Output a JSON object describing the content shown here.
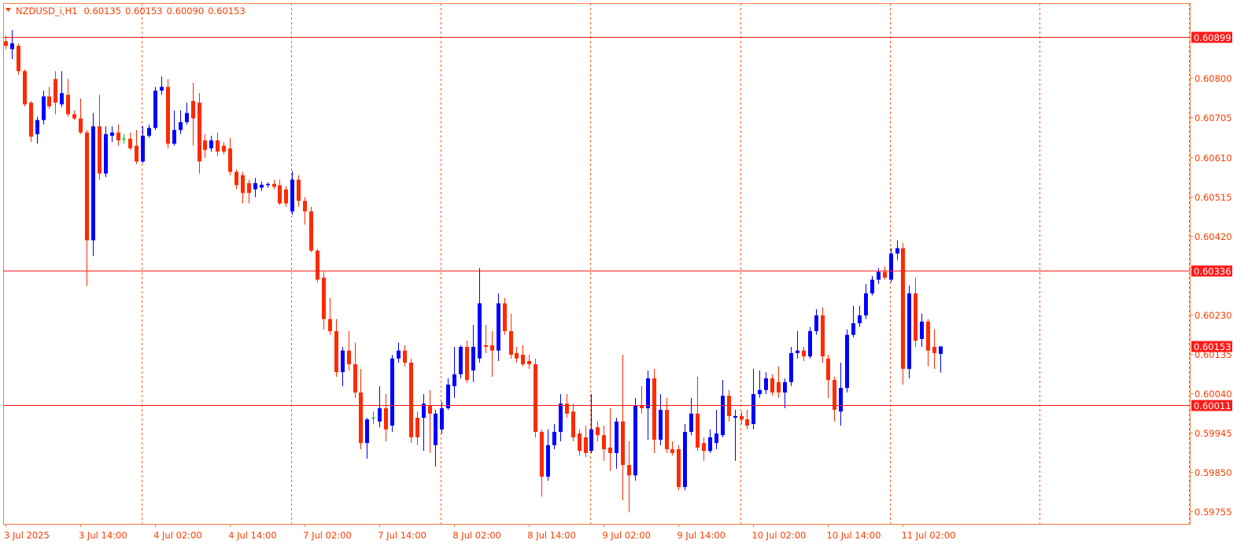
{
  "chart_data": {
    "type": "candlestick",
    "symbol": "NZDUSD_i,H1",
    "header_values": [
      "0.60135",
      "0.60153",
      "0.60090",
      "0.60153"
    ],
    "bull_color": "#0000ff",
    "bear_color": "#ff2a00",
    "doji_color": "#00b300",
    "level_color": "#ff1a1a",
    "levels": [
      0.60899,
      0.60336,
      0.60011
    ],
    "ylim": [
      0.59725,
      0.60981
    ],
    "yticks": [
      {
        "value": 0.608,
        "label": "0.60800"
      },
      0.60705,
      {
        "value": 0.6061,
        "label": "0.60610"
      },
      0.60515,
      {
        "value": 0.6042,
        "label": "0.60420"
      },
      {
        "value": 0.6023,
        "label": "0.60230"
      },
      0.60135,
      {
        "value": 0.6004,
        "label": "0.60040"
      },
      0.59945,
      {
        "value": 0.5985,
        "label": "0.59850"
      },
      0.59755
    ],
    "categories": [
      "3 Jul 2025",
      null,
      null,
      null,
      null,
      null,
      null,
      null,
      null,
      null,
      null,
      null,
      "3 Jul 14:00",
      null,
      null,
      null,
      null,
      null,
      null,
      null,
      null,
      null,
      null,
      null,
      "4 Jul 02:00",
      null,
      null,
      null,
      null,
      null,
      null,
      null,
      null,
      null,
      null,
      null,
      "4 Jul 14:00",
      null,
      null,
      null,
      null,
      null,
      null,
      null,
      null,
      null,
      null,
      null,
      "7 Jul 02:00",
      null,
      null,
      null,
      null,
      null,
      null,
      null,
      null,
      null,
      null,
      null,
      "7 Jul 14:00",
      null,
      null,
      null,
      null,
      null,
      null,
      null,
      null,
      null,
      null,
      null,
      "8 Jul 02:00",
      null,
      null,
      null,
      null,
      null,
      null,
      null,
      null,
      null,
      null,
      null,
      "8 Jul 14:00",
      null,
      null,
      null,
      null,
      null,
      null,
      null,
      null,
      null,
      null,
      null,
      "9 Jul 02:00",
      null,
      null,
      null,
      null,
      null,
      null,
      null,
      null,
      null,
      null,
      null,
      "9 Jul 14:00",
      null,
      null,
      null,
      null,
      null,
      null,
      null,
      null,
      null,
      null,
      null,
      "10 Jul 02:00",
      null,
      null,
      null,
      null,
      null,
      null,
      null,
      null,
      null,
      null,
      null,
      "10 Jul 14:00",
      null,
      null,
      null,
      null,
      null,
      null,
      null,
      null,
      null,
      null,
      null,
      "11 Jul 02:00",
      null,
      null,
      null,
      null,
      null,
      null
    ],
    "open": [
      0.60889,
      0.6087,
      0.60878,
      0.60817,
      0.60741,
      0.60665,
      0.60699,
      0.60756,
      0.60798,
      0.60737,
      0.6076,
      0.60713,
      0.60703,
      0.60669,
      0.60409,
      0.60684,
      0.6057,
      0.60661,
      0.60669,
      0.60654,
      0.60654,
      0.60637,
      0.60599,
      0.60661,
      0.6068,
      0.6077,
      0.60779,
      0.60642,
      0.60675,
      0.60694,
      0.60745,
      0.60741,
      0.6065,
      0.60631,
      0.6065,
      0.60637,
      0.60631,
      0.60574,
      0.60566,
      0.60547,
      0.60532,
      0.60536,
      0.60542,
      0.60545,
      0.60542,
      0.60532,
      0.60479,
      0.60555,
      0.60504,
      0.60479,
      0.60384,
      0.60319,
      0.60219,
      0.6019,
      0.60091,
      0.60143,
      0.6011,
      0.60042,
      0.5992,
      0.59981,
      0.59972,
      0.60004,
      0.59962,
      0.60124,
      0.60143,
      0.60114,
      0.59981,
      0.59981,
      0.6001,
      0.59915,
      0.59953,
      0.60004,
      0.60057,
      0.60086,
      0.60152,
      0.60095,
      0.60124,
      0.60156,
      0.60156,
      0.60143,
      0.60257,
      0.6019,
      0.60137,
      0.60133,
      0.60118,
      0.6011,
      0.59947,
      0.59839,
      0.59915,
      0.59947,
      0.60015,
      0.59996,
      0.59943,
      0.59934,
      0.59901,
      0.59958,
      0.59939,
      0.59909,
      0.59896,
      0.59972,
      0.59867,
      0.59842,
      0.6001,
      0.60004,
      0.60076,
      0.59928,
      0.6,
      0.59905,
      0.59905,
      0.59814,
      0.59947,
      0.59991,
      0.5992,
      0.59901,
      0.5992,
      0.59939,
      0.60034,
      0.59981,
      0.59985,
      0.59977,
      0.59966,
      0.60038,
      0.60048,
      0.60076,
      0.60067,
      0.60042,
      0.60067,
      0.60137,
      0.60143,
      0.60129,
      0.6019,
      0.60228,
      0.60124,
      0.60072,
      0.59996,
      0.60053,
      0.60181,
      0.60209,
      0.60228,
      0.60281,
      0.60314,
      0.60333,
      0.60314,
      0.60377,
      0.6039,
      0.60099,
      0.60281,
      0.60171,
      0.60213,
      0.60152,
      0.60135
    ],
    "high": [
      0.60903,
      0.60916,
      0.60884,
      0.60821,
      0.60745,
      0.60707,
      0.6077,
      0.60779,
      0.60817,
      0.60817,
      0.60798,
      0.60722,
      0.60751,
      0.60675,
      0.60716,
      0.6076,
      0.60684,
      0.60684,
      0.60688,
      0.60665,
      0.60669,
      0.60675,
      0.60684,
      0.60688,
      0.60779,
      0.60804,
      0.60798,
      0.60722,
      0.60722,
      0.60741,
      0.60789,
      0.60764,
      0.60665,
      0.60661,
      0.60669,
      0.60646,
      0.60656,
      0.6058,
      0.60574,
      0.60555,
      0.60559,
      0.60551,
      0.60549,
      0.60555,
      0.60555,
      0.6054,
      0.60576,
      0.60566,
      0.60513,
      0.6049,
      0.60388,
      0.60333,
      0.6027,
      0.60219,
      0.60152,
      0.6019,
      0.60162,
      0.60099,
      0.59981,
      0.59996,
      0.60057,
      0.60038,
      0.60133,
      0.60162,
      0.60156,
      0.60124,
      0.59996,
      0.60038,
      0.60048,
      0.6,
      0.60019,
      0.60076,
      0.60152,
      0.60156,
      0.60167,
      0.60205,
      0.60342,
      0.60205,
      0.6019,
      0.60281,
      0.6027,
      0.60232,
      0.60152,
      0.60156,
      0.60133,
      0.60124,
      0.59953,
      0.59953,
      0.59966,
      0.60038,
      0.60038,
      0.60015,
      0.59953,
      0.59962,
      0.60038,
      0.59972,
      0.59962,
      0.60004,
      0.59981,
      0.60133,
      0.59924,
      0.60029,
      0.60057,
      0.60095,
      0.60099,
      0.60038,
      0.60029,
      0.59924,
      0.59915,
      0.59966,
      0.60029,
      0.6008,
      0.59934,
      0.59953,
      0.6,
      0.60072,
      0.60048,
      0.6,
      0.59996,
      0.6,
      0.60099,
      0.60095,
      0.60091,
      0.60086,
      0.60105,
      0.60076,
      0.60152,
      0.6019,
      0.60152,
      0.602,
      0.60243,
      0.60247,
      0.60133,
      0.6008,
      0.60114,
      0.60194,
      0.60251,
      0.60251,
      0.60304,
      0.60323,
      0.60342,
      0.60346,
      0.6039,
      0.60409,
      0.60403,
      0.603,
      0.60319,
      0.60232,
      0.60219,
      0.60194,
      0.60153
    ],
    "low": [
      0.6087,
      0.60846,
      0.60808,
      0.60732,
      0.60646,
      0.60642,
      0.60688,
      0.60726,
      0.60713,
      0.6073,
      0.60707,
      0.60699,
      0.60665,
      0.60299,
      0.60371,
      0.60555,
      0.60561,
      0.60646,
      0.60637,
      0.60642,
      0.60627,
      0.60593,
      0.60595,
      0.60656,
      0.60675,
      0.6076,
      0.60631,
      0.60637,
      0.60665,
      0.60688,
      0.60637,
      0.6057,
      0.60608,
      0.60623,
      0.60612,
      0.60616,
      0.60566,
      0.60532,
      0.60498,
      0.60498,
      0.60513,
      0.60528,
      0.60536,
      0.60532,
      0.60494,
      0.6049,
      0.60471,
      0.6049,
      0.60447,
      0.6038,
      0.60308,
      0.60194,
      0.60181,
      0.6008,
      0.60057,
      0.60095,
      0.60029,
      0.59905,
      0.59882,
      0.59966,
      0.59958,
      0.59924,
      0.59947,
      0.60114,
      0.60105,
      0.5992,
      0.59915,
      0.59901,
      0.59896,
      0.59863,
      0.59943,
      0.6,
      0.60029,
      0.60076,
      0.60065,
      0.60067,
      0.60114,
      0.60137,
      0.6008,
      0.60118,
      0.60181,
      0.60124,
      0.60114,
      0.60105,
      0.60099,
      0.59934,
      0.59791,
      0.59829,
      0.59905,
      0.59924,
      0.59981,
      0.59924,
      0.5989,
      0.59886,
      0.59896,
      0.59924,
      0.59877,
      0.59852,
      0.59858,
      0.59782,
      0.59753,
      0.59829,
      0.59991,
      0.59928,
      0.59896,
      0.59915,
      0.59896,
      0.5989,
      0.59806,
      0.59806,
      0.59939,
      0.59901,
      0.59877,
      0.59896,
      0.59905,
      0.59934,
      0.59972,
      0.59877,
      0.59966,
      0.59953,
      0.59953,
      0.60029,
      0.60038,
      0.60034,
      0.60029,
      0.60004,
      0.60057,
      0.60124,
      0.60118,
      0.60124,
      0.60181,
      0.60114,
      0.60029,
      0.59972,
      0.59962,
      0.60042,
      0.60175,
      0.602,
      0.60219,
      0.60276,
      0.60304,
      0.60314,
      0.60308,
      0.60361,
      0.60061,
      0.60076,
      0.60152,
      0.60152,
      0.60105,
      0.60099,
      0.6009
    ],
    "close": [
      0.60878,
      0.60884,
      0.60817,
      0.60737,
      0.60659,
      0.60699,
      0.60756,
      0.60732,
      0.60741,
      0.60764,
      0.60713,
      0.60703,
      0.60669,
      0.60409,
      0.60684,
      0.6057,
      0.60665,
      0.60669,
      0.6065,
      0.60654,
      0.60631,
      0.60599,
      0.60661,
      0.6068,
      0.6077,
      0.60779,
      0.60642,
      0.60675,
      0.60694,
      0.60716,
      0.60703,
      0.60599,
      0.60627,
      0.6065,
      0.60623,
      0.60623,
      0.60574,
      0.60542,
      0.60523,
      0.60523,
      0.60547,
      0.60543,
      0.60545,
      0.60538,
      0.60498,
      0.60498,
      0.60555,
      0.60504,
      0.60479,
      0.60384,
      0.60314,
      0.60219,
      0.6019,
      0.60091,
      0.60143,
      0.6011,
      0.60042,
      0.5992,
      0.59977,
      0.59981,
      0.60004,
      0.59953,
      0.60124,
      0.60143,
      0.60114,
      0.59934,
      0.59934,
      0.60015,
      0.59991,
      0.59991,
      0.60004,
      0.60061,
      0.60086,
      0.60152,
      0.60072,
      0.60152,
      0.60257,
      0.60152,
      0.60143,
      0.60257,
      0.6019,
      0.60133,
      0.60124,
      0.6011,
      0.6011,
      0.59947,
      0.59839,
      0.59915,
      0.59947,
      0.60015,
      0.59991,
      0.59934,
      0.59901,
      0.59896,
      0.59953,
      0.59939,
      0.59905,
      0.59896,
      0.59972,
      0.59867,
      0.59842,
      0.6001,
      0.60004,
      0.60076,
      0.59928,
      0.6,
      0.59905,
      0.59896,
      0.59814,
      0.59947,
      0.59991,
      0.59909,
      0.59901,
      0.59934,
      0.59943,
      0.60034,
      0.59985,
      0.59985,
      0.59977,
      0.59962,
      0.60038,
      0.60048,
      0.60076,
      0.60042,
      0.60042,
      0.60067,
      0.60137,
      0.60143,
      0.60129,
      0.6019,
      0.60228,
      0.60129,
      0.60072,
      0.6,
      0.60053,
      0.60181,
      0.60209,
      0.60228,
      0.60281,
      0.60314,
      0.60333,
      0.60319,
      0.60377,
      0.6039,
      0.60099,
      0.60281,
      0.60167,
      0.60213,
      0.60143,
      0.60137,
      0.60153
    ]
  }
}
